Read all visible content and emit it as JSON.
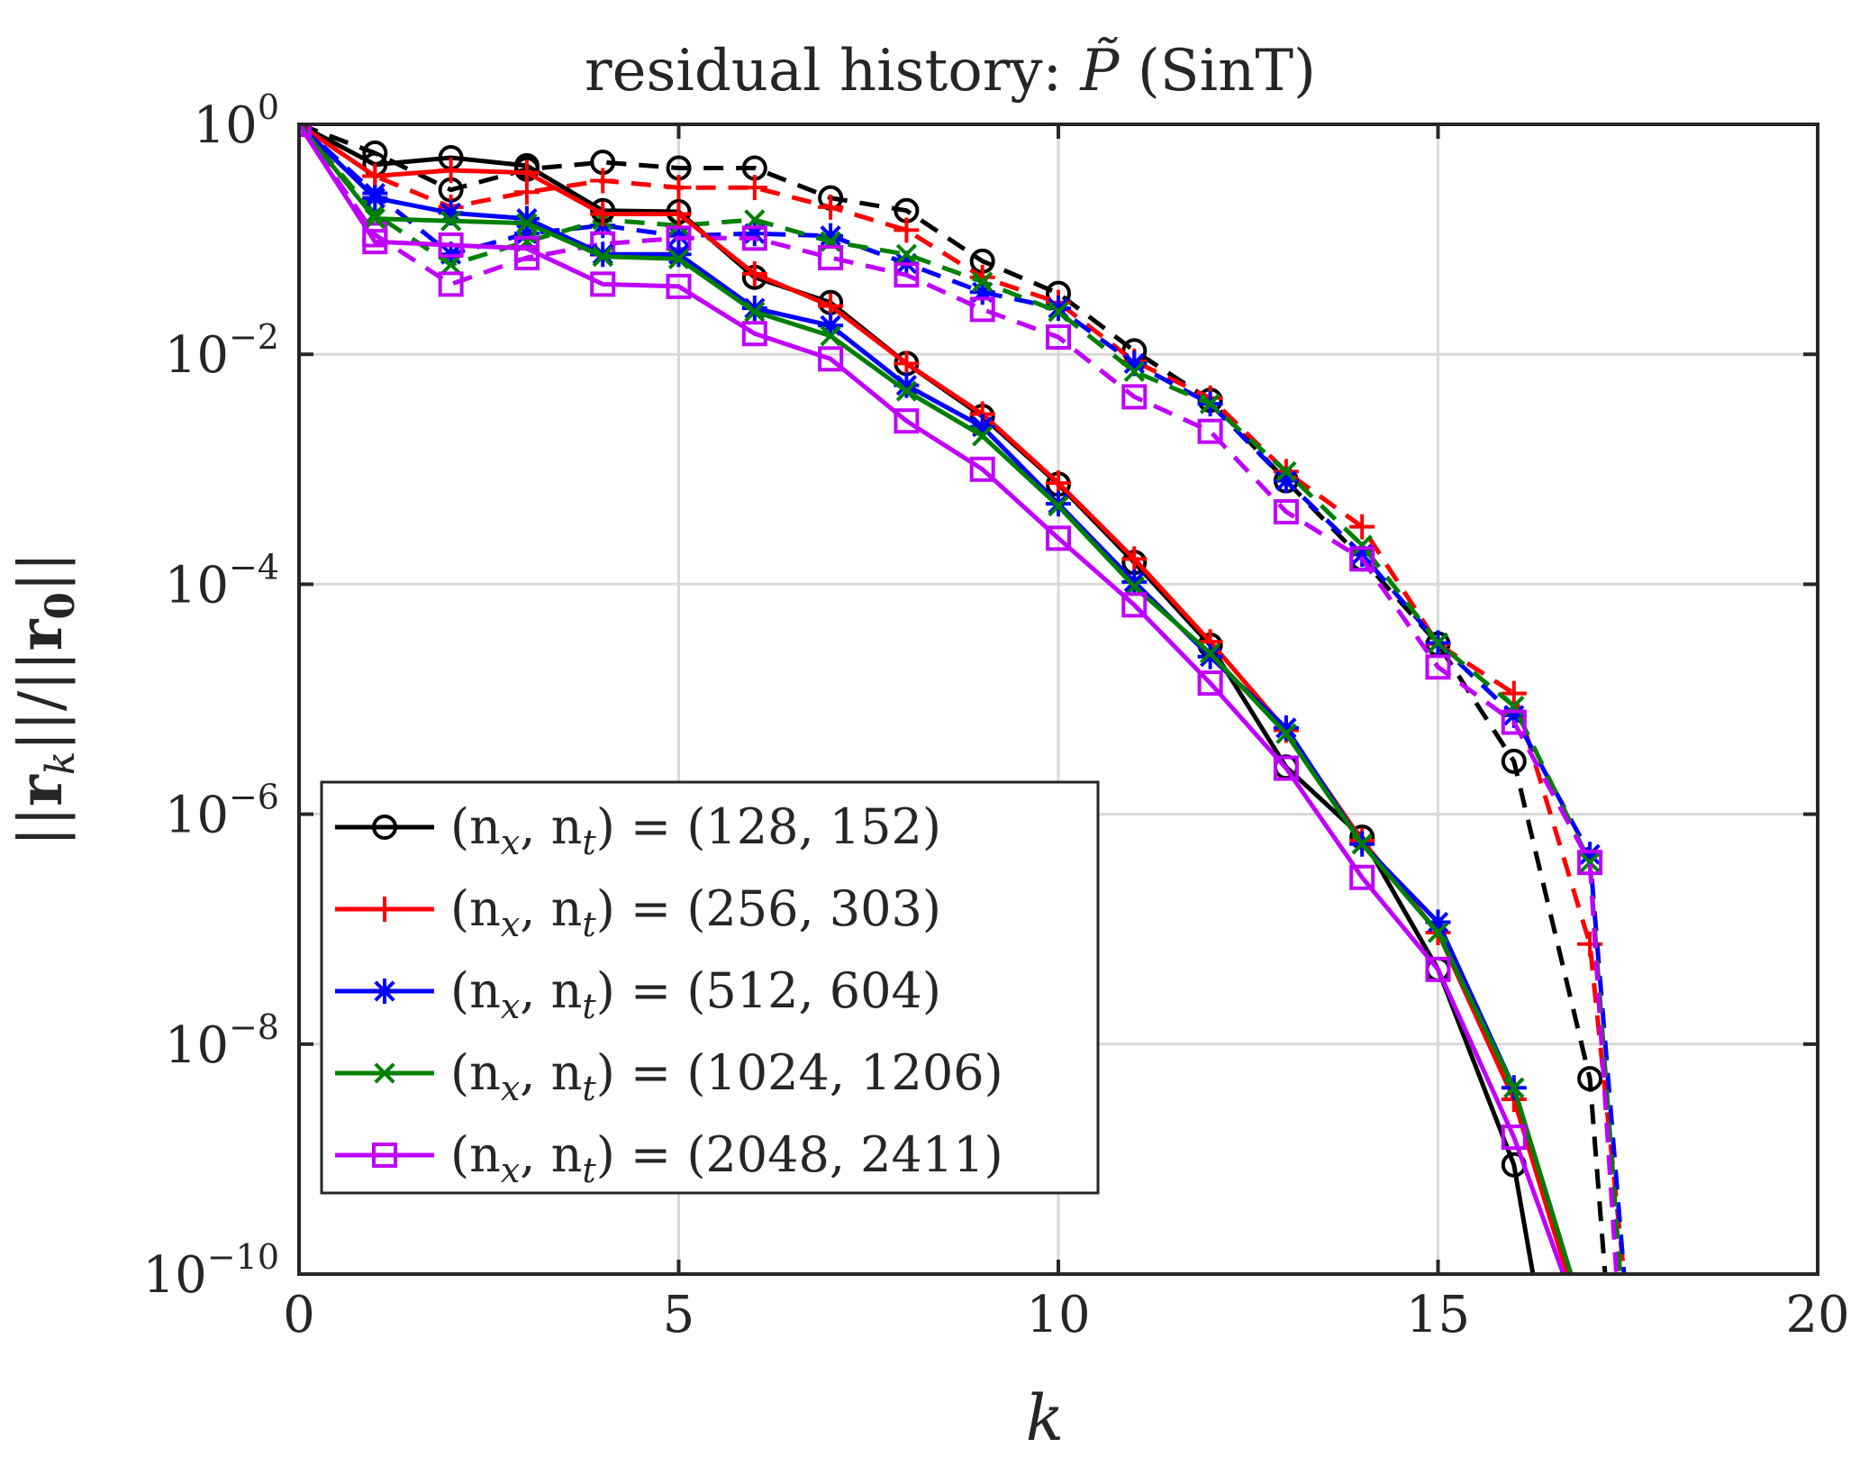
{
  "chart_data": {
    "type": "line",
    "title": "residual history: P̃ (SinT)",
    "title_parts": {
      "prefix": "residual history: ",
      "symbol": "P̃",
      "suffix": " (SinT)"
    },
    "xlabel": "k",
    "ylabel": "||r_k|| / ||r_0||",
    "ylabel_parts": {
      "left_bar": "||",
      "r": "r",
      "sub_k": "k",
      "mid": "||/||",
      "r0": "r",
      "sub_0": "0",
      "right_bar": "||"
    },
    "xlim": [
      0,
      20
    ],
    "ylim_log10": [
      -10,
      0
    ],
    "yscale": "log",
    "grid": true,
    "legend_position": "lower-left",
    "x_ticks": [
      {
        "value": 0,
        "label": "0"
      },
      {
        "value": 5,
        "label": "5"
      },
      {
        "value": 10,
        "label": "10"
      },
      {
        "value": 15,
        "label": "15"
      },
      {
        "value": 20,
        "label": "20"
      }
    ],
    "y_ticks": [
      {
        "value": 0,
        "base": "10",
        "exp": "0"
      },
      {
        "value": -2,
        "base": "10",
        "exp": "−2"
      },
      {
        "value": -4,
        "base": "10",
        "exp": "−4"
      },
      {
        "value": -6,
        "base": "10",
        "exp": "−6"
      },
      {
        "value": -8,
        "base": "10",
        "exp": "−8"
      },
      {
        "value": -10,
        "base": "10",
        "exp": "−10"
      }
    ],
    "series": [
      {
        "name": "(n_x, n_t) = (128, 152)",
        "legend": {
          "pre": "(n",
          "sub1": "x",
          "mid": ", n",
          "sub2": "t",
          "post": ") = (128, 152)"
        },
        "color": "#000000",
        "marker": "circle",
        "solid": {
          "x": [
            0,
            1,
            2,
            3,
            4,
            5,
            6,
            7,
            8,
            9,
            10,
            11,
            12,
            13,
            14,
            15,
            16,
            16.25
          ],
          "log10": [
            0,
            -0.35,
            -0.29,
            -0.36,
            -0.75,
            -0.76,
            -1.33,
            -1.55,
            -2.08,
            -2.54,
            -3.13,
            -3.81,
            -4.53,
            -5.59,
            -6.2,
            -7.35,
            -9.05,
            -10
          ]
        },
        "dashed": {
          "x": [
            0,
            1,
            2,
            3,
            4,
            5,
            6,
            7,
            8,
            9,
            10,
            11,
            12,
            13,
            14,
            15,
            16,
            17,
            17.2
          ],
          "log10": [
            0,
            -0.25,
            -0.57,
            -0.39,
            -0.33,
            -0.38,
            -0.38,
            -0.64,
            -0.75,
            -1.19,
            -1.47,
            -1.97,
            -2.4,
            -3.1,
            -3.78,
            -4.52,
            -5.54,
            -8.3,
            -10
          ]
        }
      },
      {
        "name": "(n_x, n_t) = (256, 303)",
        "legend": {
          "pre": "(n",
          "sub1": "x",
          "mid": ", n",
          "sub2": "t",
          "post": ") = (256, 303)"
        },
        "color": "#ff0000",
        "marker": "plus",
        "solid": {
          "x": [
            0,
            1,
            2,
            3,
            4,
            5,
            6,
            7,
            8,
            9,
            10,
            11,
            12,
            13,
            14,
            15,
            16,
            16.7
          ],
          "log10": [
            0,
            -0.45,
            -0.4,
            -0.42,
            -0.78,
            -0.78,
            -1.3,
            -1.58,
            -2.08,
            -2.52,
            -3.12,
            -3.78,
            -4.5,
            -5.27,
            -6.23,
            -7.03,
            -8.48,
            -10
          ]
        },
        "dashed": {
          "x": [
            0,
            1,
            2,
            3,
            4,
            5,
            6,
            7,
            8,
            9,
            10,
            11,
            12,
            13,
            14,
            15,
            16,
            17,
            17.45
          ],
          "log10": [
            0,
            -0.45,
            -0.72,
            -0.59,
            -0.49,
            -0.55,
            -0.55,
            -0.72,
            -0.92,
            -1.33,
            -1.55,
            -2.06,
            -2.38,
            -3.02,
            -3.5,
            -4.52,
            -4.95,
            -7.13,
            -10
          ]
        }
      },
      {
        "name": "(n_x, n_t) = (512, 604)",
        "legend": {
          "pre": "(n",
          "sub1": "x",
          "mid": ", n",
          "sub2": "t",
          "post": ") = (512, 604)"
        },
        "color": "#0000ff",
        "marker": "star",
        "solid": {
          "x": [
            0,
            1,
            2,
            3,
            4,
            5,
            6,
            7,
            8,
            9,
            10,
            11,
            12,
            13,
            14,
            15,
            16,
            16.75
          ],
          "log10": [
            0,
            -0.64,
            -0.77,
            -0.82,
            -1.13,
            -1.13,
            -1.6,
            -1.75,
            -2.27,
            -2.63,
            -3.3,
            -3.98,
            -4.63,
            -5.25,
            -6.26,
            -6.94,
            -8.38,
            -10
          ]
        },
        "dashed": {
          "x": [
            0,
            1,
            2,
            3,
            4,
            5,
            6,
            7,
            8,
            9,
            10,
            11,
            12,
            13,
            14,
            15,
            16,
            17,
            17.45
          ],
          "log10": [
            0,
            -0.6,
            -1.13,
            -0.95,
            -0.88,
            -0.97,
            -0.95,
            -0.97,
            -1.21,
            -1.46,
            -1.6,
            -2.08,
            -2.43,
            -3.1,
            -3.74,
            -4.51,
            -5.14,
            -6.35,
            -10
          ]
        }
      },
      {
        "name": "(n_x, n_t) = (1024, 1206)",
        "legend": {
          "pre": "(n",
          "sub1": "x",
          "mid": ", n",
          "sub2": "t",
          "post": ") = (1024, 1206)"
        },
        "color": "#008000",
        "marker": "cross",
        "solid": {
          "x": [
            0,
            1,
            2,
            3,
            4,
            5,
            6,
            7,
            8,
            9,
            10,
            11,
            12,
            13,
            14,
            15,
            16,
            16.75
          ],
          "log10": [
            0,
            -0.82,
            -0.84,
            -0.86,
            -1.15,
            -1.17,
            -1.63,
            -1.84,
            -2.32,
            -2.71,
            -3.32,
            -4.02,
            -4.6,
            -5.3,
            -6.26,
            -7.03,
            -8.38,
            -10
          ]
        },
        "dashed": {
          "x": [
            0,
            1,
            2,
            3,
            4,
            5,
            6,
            7,
            8,
            9,
            10,
            11,
            12,
            13,
            14,
            15,
            16,
            17,
            17.4
          ],
          "log10": [
            0,
            -0.78,
            -1.22,
            -1.02,
            -0.83,
            -0.88,
            -0.83,
            -1.02,
            -1.13,
            -1.37,
            -1.63,
            -2.15,
            -2.43,
            -3.02,
            -3.66,
            -4.51,
            -5.06,
            -6.42,
            -10
          ]
        }
      },
      {
        "name": "(n_x, n_t) = (2048, 2411)",
        "legend": {
          "pre": "(n",
          "sub1": "x",
          "mid": ", n",
          "sub2": "t",
          "post": ") = (2048, 2411)"
        },
        "color": "#bf00ff",
        "marker": "square",
        "solid": {
          "x": [
            0,
            1,
            2,
            3,
            4,
            5,
            6,
            7,
            8,
            9,
            10,
            11,
            12,
            13,
            14,
            15,
            16,
            16.65
          ],
          "log10": [
            0,
            -1.02,
            -1.05,
            -1.08,
            -1.39,
            -1.41,
            -1.82,
            -2.04,
            -2.58,
            -3.0,
            -3.6,
            -4.18,
            -4.86,
            -5.6,
            -6.55,
            -7.35,
            -8.81,
            -10
          ]
        },
        "dashed": {
          "x": [
            0,
            1,
            2,
            3,
            4,
            5,
            6,
            7,
            8,
            9,
            10,
            11,
            12,
            13,
            14,
            15,
            16,
            17,
            17.35
          ],
          "log10": [
            0,
            -0.96,
            -1.39,
            -1.16,
            -1.04,
            -0.99,
            -0.99,
            -1.16,
            -1.31,
            -1.61,
            -1.85,
            -2.37,
            -2.67,
            -3.37,
            -3.78,
            -4.72,
            -5.2,
            -6.42,
            -10
          ]
        }
      }
    ]
  }
}
